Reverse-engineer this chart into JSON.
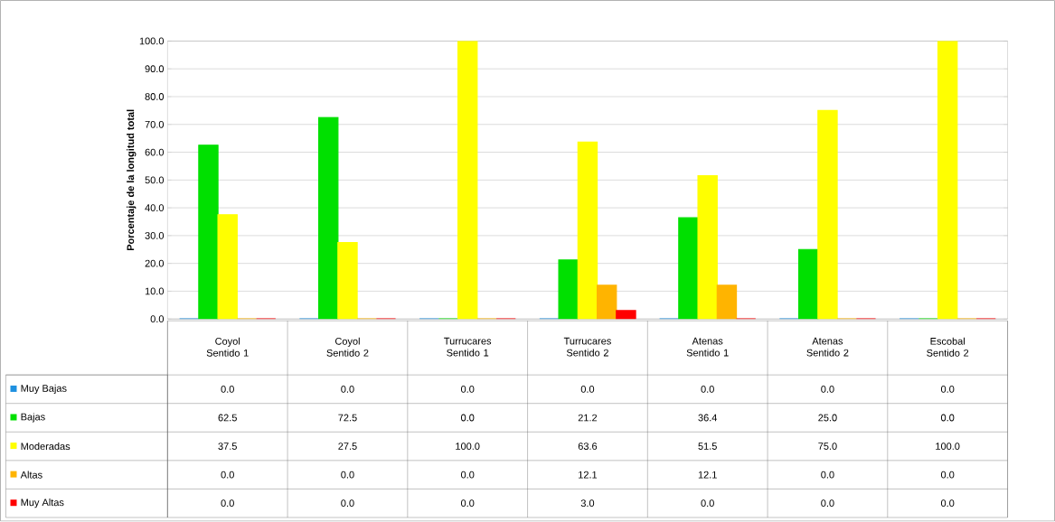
{
  "chart_data": {
    "type": "bar",
    "ylabel": "Porcentaje de la longitud total",
    "categories": [
      "Coyol Sentido 1",
      "Coyol Sentido 2",
      "Turrucares Sentido 1",
      "Turrucares Sentido 2",
      "Atenas Sentido 1",
      "Atenas Sentido 2",
      "Escobal Sentido 2"
    ],
    "series": [
      {
        "name": "Muy Bajas",
        "color": "#1e90e0",
        "values": [
          0,
          0,
          0,
          0,
          0,
          0,
          0
        ],
        "value_labels": [
          "0.0",
          "0.0",
          "0.0",
          "0.0",
          "0.0",
          "0.0",
          "0.0"
        ]
      },
      {
        "name": "Bajas",
        "color": "#00e000",
        "values": [
          62.5,
          72.5,
          0,
          21.2,
          36.4,
          25.0,
          0
        ],
        "value_labels": [
          "62.5",
          "72.5",
          "0.0",
          "21.2",
          "36.4",
          "25.0",
          "0.0"
        ]
      },
      {
        "name": "Moderadas",
        "color": "#ffff00",
        "values": [
          37.5,
          27.5,
          100.0,
          63.6,
          51.5,
          75.0,
          100.0
        ],
        "value_labels": [
          "37.5",
          "27.5",
          "100.0",
          "63.6",
          "51.5",
          "75.0",
          "100.0"
        ]
      },
      {
        "name": "Altas",
        "color": "#ffb400",
        "values": [
          0,
          0,
          0,
          12.1,
          12.1,
          0,
          0
        ],
        "value_labels": [
          "0.0",
          "0.0",
          "0.0",
          "12.1",
          "12.1",
          "0.0",
          "0.0"
        ]
      },
      {
        "name": "Muy Altas",
        "color": "#ff0000",
        "values": [
          0,
          0,
          0,
          3.0,
          0,
          0,
          0
        ],
        "value_labels": [
          "0.0",
          "0.0",
          "0.0",
          "3.0",
          "0.0",
          "0.0",
          "0.0"
        ]
      }
    ],
    "ylim": [
      0,
      100
    ],
    "yticks": [
      {
        "value": 0,
        "label": "0.0"
      },
      {
        "value": 10,
        "label": "10.0"
      },
      {
        "value": 20,
        "label": "20.0"
      },
      {
        "value": 30,
        "label": "30.0"
      },
      {
        "value": 40,
        "label": "40.0"
      },
      {
        "value": 50,
        "label": "50.0"
      },
      {
        "value": 60,
        "label": "60.0"
      },
      {
        "value": 70,
        "label": "70.0"
      },
      {
        "value": 80,
        "label": "80.0"
      },
      {
        "value": 90,
        "label": "90.0"
      },
      {
        "value": 100,
        "label": "100.0"
      }
    ],
    "grid": "y",
    "legend": "bottom left"
  }
}
